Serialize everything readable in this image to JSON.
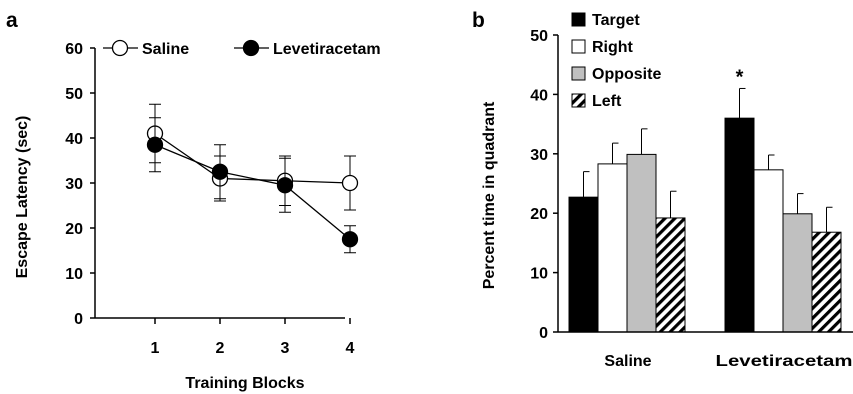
{
  "panels": {
    "a": {
      "letter": "a"
    },
    "b": {
      "letter": "b"
    }
  },
  "chart_data": [
    {
      "type": "line",
      "panel": "a",
      "xlabel": "Training Blocks",
      "ylabel": "Escape Latency (sec)",
      "x": [
        1,
        2,
        3,
        4
      ],
      "xticks": [
        "1",
        "2",
        "3",
        "4"
      ],
      "ylim": [
        0,
        60
      ],
      "yticks": [
        "0",
        "10",
        "20",
        "30",
        "40",
        "50",
        "60"
      ],
      "grid": false,
      "legend": "top",
      "series": [
        {
          "name": "Saline",
          "marker": "open-circle",
          "color": "#ffffff",
          "values": [
            41,
            31,
            30.5,
            30
          ],
          "error": [
            6.5,
            5,
            5.5,
            6
          ]
        },
        {
          "name": "Levetiracetam",
          "marker": "filled-circle",
          "color": "#000000",
          "values": [
            38.5,
            32.5,
            29.5,
            17.5
          ],
          "error": [
            6,
            6,
            6,
            3
          ]
        }
      ]
    },
    {
      "type": "bar",
      "panel": "b",
      "xlabel": "",
      "ylabel": "Percent time in quadrant",
      "categories": [
        "Saline",
        "Levetiracetam"
      ],
      "ylim": [
        0,
        50
      ],
      "yticks": [
        "0",
        "10",
        "20",
        "30",
        "40",
        "50"
      ],
      "grid": false,
      "legend": "top-left",
      "series": [
        {
          "name": "Target",
          "fill": "#000000",
          "values": [
            22.7,
            36
          ],
          "error": [
            4.3,
            5
          ]
        },
        {
          "name": "Right",
          "fill": "#ffffff",
          "values": [
            28.3,
            27.3
          ],
          "error": [
            3.5,
            2.5
          ]
        },
        {
          "name": "Opposite",
          "fill": "#c0c0c0",
          "values": [
            29.9,
            19.9
          ],
          "error": [
            4.3,
            3.4
          ]
        },
        {
          "name": "Left",
          "fill": "hatched",
          "values": [
            19.2,
            16.8
          ],
          "error": [
            4.5,
            4.2
          ]
        }
      ],
      "annotations": [
        {
          "text": "*",
          "series": "Target",
          "category": "Levetiracetam"
        }
      ]
    }
  ]
}
